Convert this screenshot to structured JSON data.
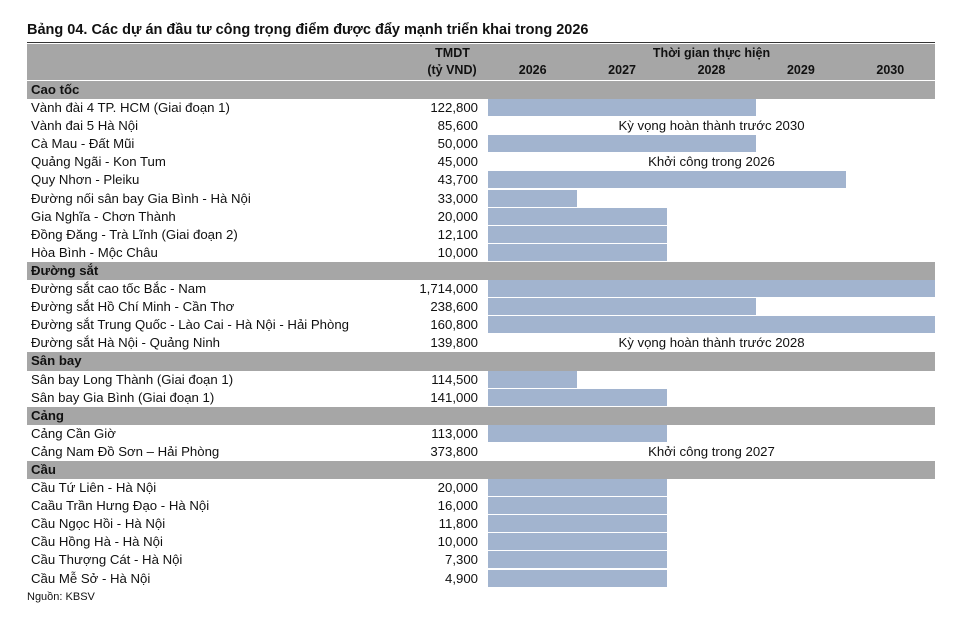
{
  "title": "Bảng 04. Các dự án đầu tư công trọng điểm được đẩy mạnh triển khai trong 2026",
  "header": {
    "cost": "TMDT",
    "cost_unit": "(tỷ VND)",
    "timeline": "Thời gian thực hiện",
    "years": [
      "2026",
      "2027",
      "2028",
      "2029",
      "2030"
    ]
  },
  "sections": [
    {
      "name": "Cao tốc",
      "rows": [
        {
          "name": "Vành đài 4 TP. HCM (Giai đoạn 1)",
          "cost": "122,800",
          "bar": [
            2026,
            2029
          ]
        },
        {
          "name": "Vành đai 5 Hà Nội",
          "cost": "85,600",
          "note": "Kỳ vọng hoàn thành trước 2030"
        },
        {
          "name": "Cà Mau - Đất Mũi",
          "cost": "50,000",
          "bar": [
            2026,
            2029
          ]
        },
        {
          "name": "Quảng Ngãi - Kon Tum",
          "cost": "45,000",
          "note": "Khởi công trong 2026"
        },
        {
          "name": "Quy Nhơn - Pleiku",
          "cost": "43,700",
          "bar": [
            2026,
            2030
          ]
        },
        {
          "name": "Đường nối sân bay Gia Bình - Hà Nội",
          "cost": "33,000",
          "bar": [
            2026,
            2027
          ]
        },
        {
          "name": "Gia Nghĩa - Chơn Thành",
          "cost": "20,000",
          "bar": [
            2026,
            2028
          ]
        },
        {
          "name": "Đồng Đăng - Trà Lĩnh (Giai đoạn 2)",
          "cost": "12,100",
          "bar": [
            2026,
            2028
          ]
        },
        {
          "name": "Hòa Bình - Mộc Châu",
          "cost": "10,000",
          "bar": [
            2026,
            2028
          ]
        }
      ]
    },
    {
      "name": "Đường sắt",
      "rows": [
        {
          "name": "Đường sắt cao tốc Bắc - Nam",
          "cost": "1,714,000",
          "bar": [
            2026,
            2031
          ]
        },
        {
          "name": "Đường sắt Hồ Chí Minh - Cần Thơ",
          "cost": "238,600",
          "bar": [
            2026,
            2029
          ]
        },
        {
          "name": "Đường sắt Trung Quốc - Lào Cai - Hà Nội - Hải Phòng",
          "cost": "160,800",
          "bar": [
            2026,
            2031
          ]
        },
        {
          "name": "Đường sắt Hà Nội - Quảng Ninh",
          "cost": "139,800",
          "note": "Kỳ vọng hoàn thành trước 2028"
        }
      ]
    },
    {
      "name": "Sân bay",
      "rows": [
        {
          "name": "Sân bay Long Thành (Giai đoạn 1)",
          "cost": "114,500",
          "bar": [
            2026,
            2027
          ]
        },
        {
          "name": "Sân bay Gia Bình (Giai đoạn 1)",
          "cost": "141,000",
          "bar": [
            2026,
            2028
          ]
        }
      ]
    },
    {
      "name": "Cảng",
      "rows": [
        {
          "name": "Cảng Cần Giờ",
          "cost": "113,000",
          "bar": [
            2026,
            2028
          ]
        },
        {
          "name": "Cảng Nam Đồ Sơn – Hải Phòng",
          "cost": "373,800",
          "note": "Khởi công trong 2027"
        }
      ]
    },
    {
      "name": "Cầu",
      "rows": [
        {
          "name": "Cầu Tứ Liên - Hà Nội",
          "cost": "20,000",
          "bar": [
            2026,
            2028
          ]
        },
        {
          "name": "Caầu Trần Hưng Đạo - Hà Nội",
          "cost": "16,000",
          "bar": [
            2026,
            2028
          ]
        },
        {
          "name": "Cầu Ngọc Hồi - Hà Nội",
          "cost": "11,800",
          "bar": [
            2026,
            2028
          ]
        },
        {
          "name": "Cầu Hồng Hà - Hà Nội",
          "cost": "10,000",
          "bar": [
            2026,
            2028
          ]
        },
        {
          "name": "Cầu Thượng Cát - Hà Nội",
          "cost": "7,300",
          "bar": [
            2026,
            2028
          ]
        },
        {
          "name": "Cầu Mễ Sở - Hà Nội",
          "cost": "4,900",
          "bar": [
            2026,
            2028
          ]
        }
      ]
    }
  ],
  "source": "Nguồn: KBSV"
}
